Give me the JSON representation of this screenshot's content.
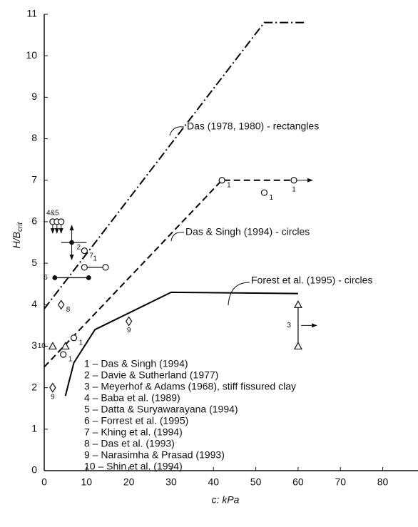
{
  "chart_data": {
    "type": "line",
    "xlabel": "c: kPa",
    "ylabel": "H/B",
    "ylabel_sub": "crit",
    "xlim": [
      0,
      88
    ],
    "ylim": [
      0,
      11
    ],
    "xticks": [
      0,
      10,
      20,
      30,
      40,
      50,
      60,
      70,
      80
    ],
    "yticks": [
      0,
      1,
      2,
      3,
      4,
      5,
      6,
      7,
      8,
      9,
      10,
      11
    ],
    "series": [
      {
        "style": "dashdot",
        "color": "#000000",
        "x": [
          0,
          52,
          62
        ],
        "values": [
          3.9,
          10.8,
          10.8
        ]
      },
      {
        "style": "dashed",
        "color": "#000000",
        "x": [
          0,
          42,
          59
        ],
        "values": [
          2.5,
          7,
          7
        ]
      },
      {
        "style": "solid",
        "color": "#000000",
        "x": [
          5,
          7,
          12,
          30,
          60
        ],
        "values": [
          1.8,
          2.6,
          3.4,
          4.3,
          4.27
        ]
      }
    ],
    "annotations": [
      "Das (1978, 1980) - rectangles",
      "Das & Singh (1994) - circles",
      "Forest et al. (1995) - circles"
    ],
    "points": [
      {
        "shape": "circle",
        "x": 42,
        "y": 7,
        "label": "1",
        "label_pos": "right"
      },
      {
        "shape": "circle",
        "x": 59,
        "y": 7,
        "label": "1",
        "label_pos": "below",
        "arrow": "right"
      },
      {
        "shape": "circle",
        "x": 52,
        "y": 6.7,
        "label": "1",
        "label_pos": "right"
      },
      {
        "shape": "circle",
        "y": 4.9,
        "x_range": [
          9.5,
          14.5
        ],
        "label": "1",
        "label_pos": "above"
      },
      {
        "shape": "dot",
        "y": 4.65,
        "x_range": [
          2.5,
          10.5
        ],
        "label": "6",
        "label_pos": "left"
      },
      {
        "shape": "circle",
        "x": 9.5,
        "y": 5.3,
        "label": "7",
        "label_pos": "right"
      },
      {
        "shape": "dot",
        "x": 6.5,
        "y": 5.5,
        "x_range": [
          4,
          10
        ],
        "label": "2",
        "label_pos": "right",
        "arrow": "updown"
      },
      {
        "shape": "circle",
        "x": 2,
        "y": 6.0,
        "label": "4&5",
        "label_pos": "above",
        "arrow": "down"
      },
      {
        "shape": "circle",
        "x": 3,
        "y": 6.0,
        "arrow": "down"
      },
      {
        "shape": "circle",
        "x": 4,
        "y": 6.0,
        "arrow": "down"
      },
      {
        "shape": "triangle",
        "x": 60,
        "y": 3.5,
        "y_range": [
          3,
          4
        ],
        "label": "3",
        "label_pos": "left",
        "arrow": "right"
      },
      {
        "shape": "diamond",
        "x": 4,
        "y": 4,
        "label": "8",
        "label_pos": "right"
      },
      {
        "shape": "diamond",
        "x": 20,
        "y": 3.6,
        "label": "9",
        "label_pos": "below"
      },
      {
        "shape": "diamond",
        "x": 2,
        "y": 2,
        "label": "9",
        "label_pos": "below"
      },
      {
        "shape": "triangle",
        "x": 2,
        "y": 3,
        "label": "10",
        "label_pos": "left"
      },
      {
        "shape": "triangle",
        "x": 5,
        "y": 3
      },
      {
        "shape": "circle",
        "x": 4.5,
        "y": 2.8,
        "label": "1",
        "label_pos": "right"
      },
      {
        "shape": "circle",
        "x": 7,
        "y": 3.2,
        "label": "1",
        "label_pos": "right"
      }
    ],
    "legend": [
      "1 – Das & Singh (1994)",
      "2 – Davie & Sutherland (1977)",
      "3 – Meyerhof & Adams (1968), stiff fissured clay",
      "4 – Baba et al. (1989)",
      "5 – Datta & Suryawarayana (1994)",
      "6 – Forrest et al. (1995)",
      "7 – Khing et al. (1994)",
      "8 – Das et al. (1993)",
      "9 – Narasimha & Prasad (1993)",
      "10 – Shin et al. (1994)"
    ]
  }
}
